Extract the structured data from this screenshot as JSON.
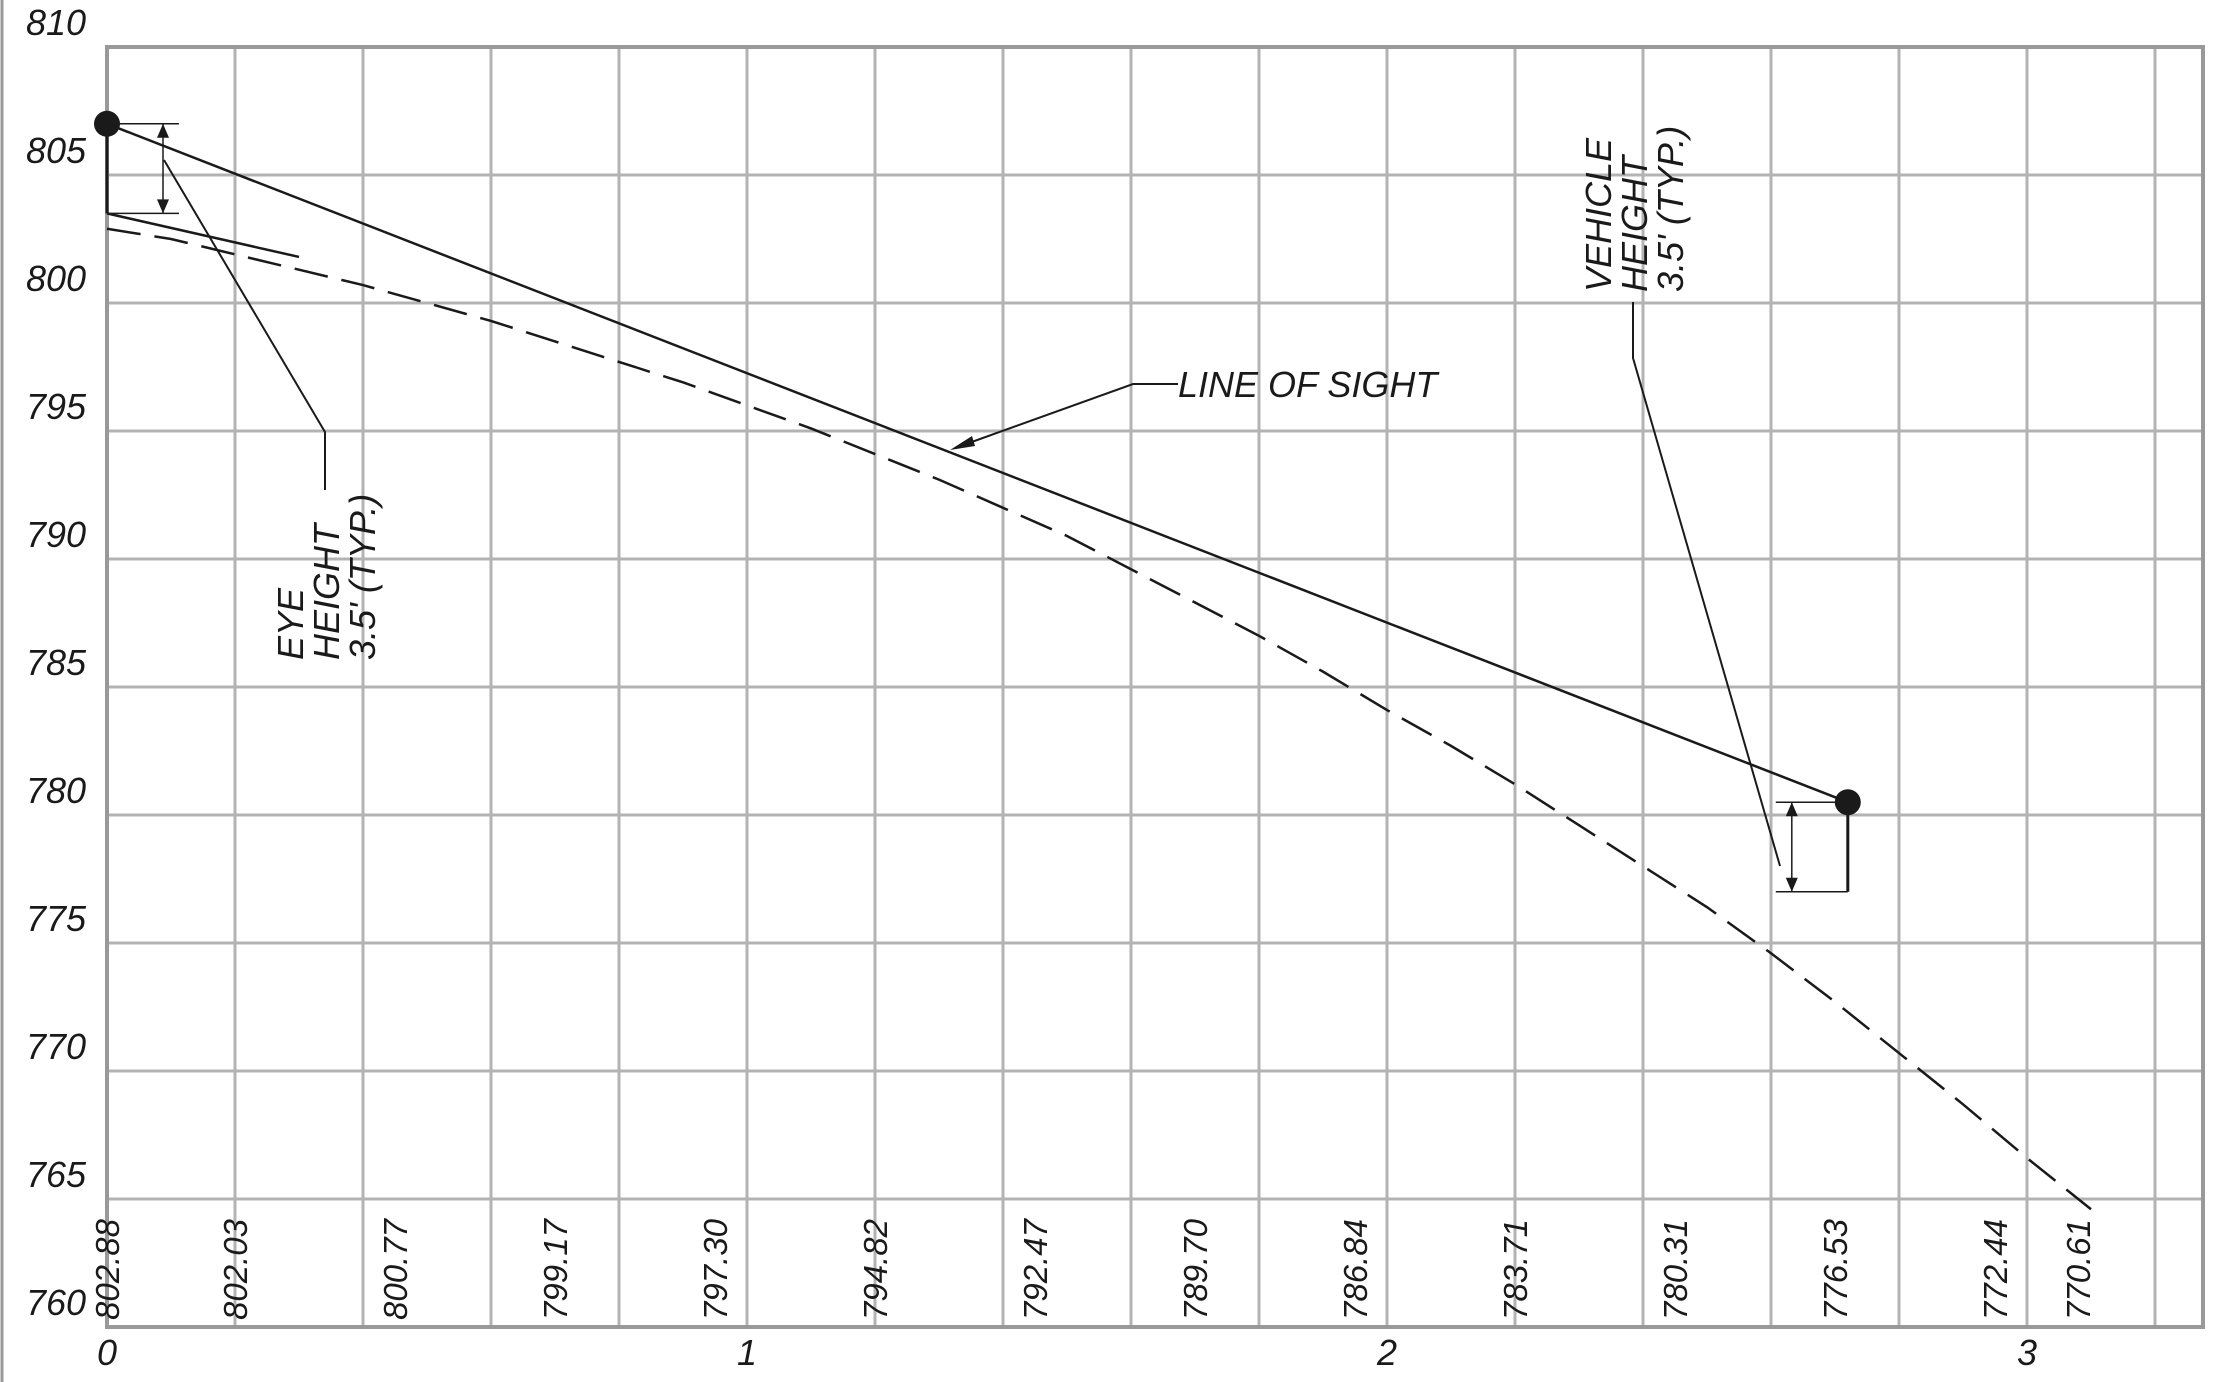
{
  "chart_data": {
    "type": "line",
    "title": "",
    "xlabel": "",
    "ylabel": "",
    "xlim": [
      0,
      3.3
    ],
    "ylim": [
      760,
      810
    ],
    "x_ticks": [
      "0",
      "1",
      "2",
      "3"
    ],
    "y_ticks": [
      "760",
      "765",
      "770",
      "775",
      "780",
      "785",
      "790",
      "795",
      "800",
      "805",
      "810"
    ],
    "grid": true,
    "elevation_labels": [
      {
        "x": 0.0,
        "text": "802.88"
      },
      {
        "x": 0.2,
        "text": "802.03"
      },
      {
        "x": 0.45,
        "text": "800.77"
      },
      {
        "x": 0.7,
        "text": "799.17"
      },
      {
        "x": 0.95,
        "text": "797.30"
      },
      {
        "x": 1.2,
        "text": "794.82"
      },
      {
        "x": 1.45,
        "text": "792.47"
      },
      {
        "x": 1.7,
        "text": "789.70"
      },
      {
        "x": 1.95,
        "text": "786.84"
      },
      {
        "x": 2.2,
        "text": "783.71"
      },
      {
        "x": 2.45,
        "text": "780.31"
      },
      {
        "x": 2.7,
        "text": "776.53"
      },
      {
        "x": 2.95,
        "text": "772.44"
      },
      {
        "x": 3.08,
        "text": "770.61"
      }
    ],
    "series": [
      {
        "style": "dashed",
        "x": [
          0,
          0.1,
          0.2,
          0.3,
          0.4,
          0.5,
          0.6,
          0.7,
          0.8,
          0.9,
          1.0,
          1.1,
          1.2,
          1.3,
          1.4,
          1.5,
          1.6,
          1.7,
          1.8,
          1.9,
          2.0,
          2.1,
          2.2,
          2.3,
          2.4,
          2.5,
          2.6,
          2.7,
          2.8,
          2.9,
          3.0,
          3.1
        ],
        "y": [
          802.9,
          802.5,
          801.9,
          801.3,
          800.7,
          800.0,
          799.3,
          798.5,
          797.7,
          796.9,
          796.0,
          795.1,
          794.1,
          793.1,
          792.0,
          790.9,
          789.6,
          788.3,
          787.0,
          785.6,
          784.1,
          782.7,
          781.2,
          779.6,
          778.0,
          776.4,
          774.6,
          772.7,
          770.7,
          768.7,
          766.6,
          764.6
        ]
      },
      {
        "style": "solid",
        "name": "",
        "x": [
          0,
          2.72
        ],
        "y": [
          807.0,
          780.5
        ]
      }
    ],
    "points": [
      {
        "x": 0,
        "y": 807.0
      },
      {
        "x": 2.72,
        "y": 780.5
      }
    ],
    "annotations": {
      "line_of_sight": "LINE OF SIGHT",
      "eye_height": [
        "EYE",
        "HEIGHT",
        "3.5' (TYP.)"
      ],
      "vehicle_height": [
        "VEHICLE",
        "HEIGHT",
        "3.5' (TYP.)"
      ]
    },
    "colors": {
      "grid": "#b3b3b3",
      "ink": "#1a1a1a",
      "background": "#ffffff"
    }
  }
}
